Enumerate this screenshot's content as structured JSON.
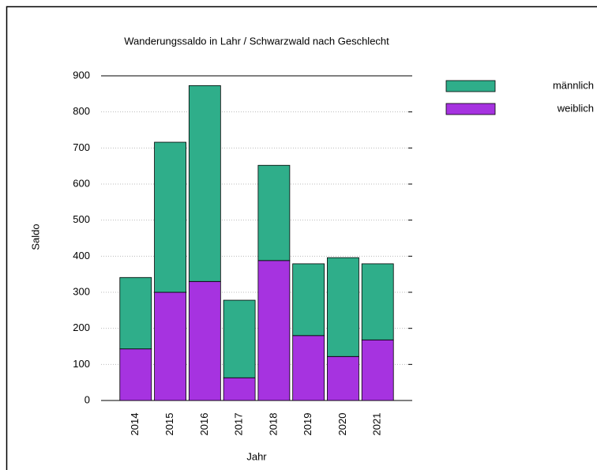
{
  "chart_data": {
    "type": "stacked_bar",
    "title": "Wanderungssaldo in Lahr / Schwarzwald nach Geschlecht",
    "x_label": "Jahr",
    "y_label": "Saldo",
    "categories": [
      "2014",
      "2015",
      "2016",
      "2017",
      "2018",
      "2019",
      "2020",
      "2021"
    ],
    "series": [
      {
        "name": "weiblich",
        "color": "#a633e0",
        "values": [
          143,
          300,
          330,
          63,
          388,
          180,
          122,
          168
        ]
      },
      {
        "name": "männlich",
        "color": "#2fae8a",
        "values": [
          198,
          416,
          543,
          215,
          264,
          199,
          274,
          211
        ]
      }
    ],
    "ylim": [
      0,
      900
    ],
    "yticks": [
      0,
      100,
      200,
      300,
      400,
      500,
      600,
      700,
      800,
      900
    ],
    "grid": true,
    "legend": "top-right"
  }
}
